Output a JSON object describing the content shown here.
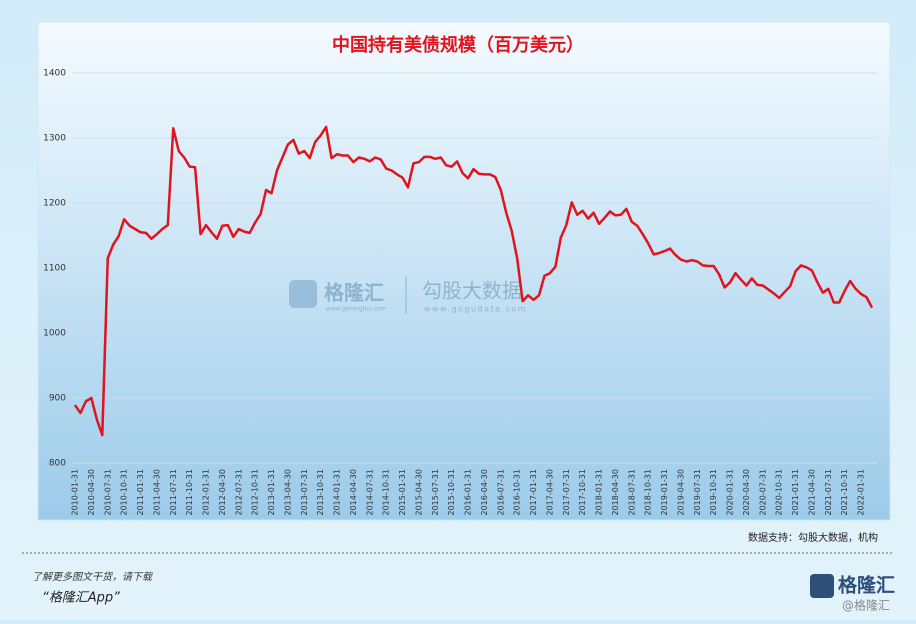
{
  "chart_data": {
    "type": "line",
    "title": "中国持有美债规模（百万美元）",
    "categories": [
      "2010-01-31",
      null,
      null,
      "2010-04-30",
      null,
      null,
      "2010-07-31",
      null,
      null,
      "2010-10-31",
      null,
      null,
      "2011-01-31",
      null,
      null,
      "2011-04-30",
      null,
      null,
      "2011-07-31",
      null,
      null,
      "2011-10-31",
      null,
      null,
      "2012-01-31",
      null,
      null,
      "2012-04-30",
      null,
      null,
      "2012-07-31",
      null,
      null,
      "2012-10-31",
      null,
      null,
      "2013-01-31",
      null,
      null,
      "2013-04-30",
      null,
      null,
      "2013-07-31",
      null,
      null,
      "2013-10-31",
      null,
      null,
      "2014-01-31",
      null,
      null,
      "2014-04-30",
      null,
      null,
      "2014-07-31",
      null,
      null,
      "2014-10-31",
      null,
      null,
      "2015-01-31",
      null,
      null,
      "2015-04-30",
      null,
      null,
      "2015-07-31",
      null,
      null,
      "2015-10-31",
      null,
      null,
      "2016-01-31",
      null,
      null,
      "2016-04-30",
      null,
      null,
      "2016-07-31",
      null,
      null,
      "2016-10-31",
      null,
      null,
      "2017-01-31",
      null,
      null,
      "2017-04-30",
      null,
      null,
      "2017-07-31",
      null,
      null,
      "2017-10-31",
      null,
      null,
      "2018-01-31",
      null,
      null,
      "2018-04-30",
      null,
      null,
      "2018-07-31",
      null,
      null,
      "2018-10-31",
      null,
      null,
      "2019-01-31",
      null,
      null,
      "2019-04-30",
      null,
      null,
      "2019-07-31",
      null,
      null,
      "2019-10-31",
      null,
      null,
      "2020-01-31",
      null,
      null,
      "2020-04-30",
      null,
      null,
      "2020-07-31",
      null,
      null,
      "2020-10-31",
      null,
      null,
      "2021-01-31",
      null,
      null,
      "2021-04-30",
      null,
      null,
      "2021-07-31",
      null,
      null,
      "2021-10-31",
      null,
      null,
      "2022-01-31",
      null,
      null
    ],
    "values": [
      889,
      877,
      895,
      900,
      867,
      843,
      1115,
      1136,
      1149,
      1175,
      1165,
      1160,
      1155,
      1154,
      1145,
      1152,
      1160,
      1166,
      1315,
      1280,
      1270,
      1256,
      1255,
      1152,
      1166,
      1155,
      1145,
      1165,
      1166,
      1148,
      1160,
      1156,
      1154,
      1170,
      1183,
      1220,
      1215,
      1250,
      1270,
      1290,
      1297,
      1276,
      1280,
      1269,
      1294,
      1304,
      1317,
      1269,
      1275,
      1273,
      1273,
      1263,
      1270,
      1268,
      1264,
      1270,
      1267,
      1253,
      1250,
      1244,
      1239,
      1224,
      1261,
      1263,
      1271,
      1271,
      1268,
      1270,
      1258,
      1256,
      1264,
      1246,
      1238,
      1252,
      1245,
      1244,
      1244,
      1240,
      1220,
      1185,
      1157,
      1115,
      1049,
      1058,
      1051,
      1058,
      1088,
      1092,
      1102,
      1147,
      1166,
      1201,
      1182,
      1188,
      1176,
      1185,
      1168,
      1177,
      1187,
      1181,
      1182,
      1191,
      1171,
      1165,
      1152,
      1138,
      1121,
      1123,
      1126,
      1130,
      1120,
      1113,
      1110,
      1112,
      1110,
      1104,
      1103,
      1103,
      1090,
      1070,
      1078,
      1092,
      1082,
      1073,
      1084,
      1074,
      1073,
      1067,
      1061,
      1054,
      1063,
      1072,
      1095,
      1104,
      1101,
      1096,
      1078,
      1062,
      1068,
      1047,
      1047,
      1065,
      1080,
      1068,
      1060,
      1055,
      1039
    ],
    "color": "#e0141e",
    "ylim": [
      800,
      1400
    ],
    "yticks": [
      800,
      900,
      1000,
      1100,
      1200,
      1300,
      1400
    ],
    "grid": true,
    "source": "数据支持：勾股大数据，机构"
  },
  "watermark": {
    "brand": "格隆汇",
    "brand_url": "www.gelonghui.com",
    "data_brand": "勾股大数据",
    "data_url": "www.gogudata.com"
  },
  "footer": {
    "prompt": "了解更多图文干货，请下载",
    "app": "“格隆汇App”",
    "logo": "格隆汇",
    "handle": "@格隆汇"
  }
}
